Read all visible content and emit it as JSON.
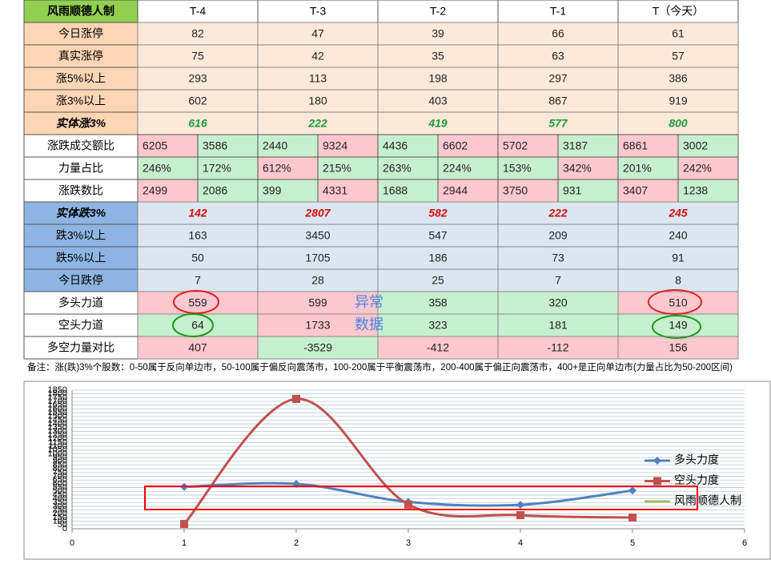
{
  "table": {
    "header": [
      "风雨顺德人制",
      "T-4",
      "T-3",
      "T-2",
      "T-1",
      "T（今天）"
    ],
    "rows": [
      {
        "label": "今日涨停",
        "cells": [
          82,
          47,
          39,
          66,
          61
        ]
      },
      {
        "label": "真实涨停",
        "cells": [
          75,
          42,
          35,
          63,
          57
        ]
      },
      {
        "label": "涨5%以上",
        "cells": [
          293,
          113,
          198,
          297,
          386
        ]
      },
      {
        "label": "涨3%以上",
        "cells": [
          602,
          180,
          403,
          867,
          919
        ]
      },
      {
        "label": "实体涨3%",
        "cells": [
          616,
          222,
          419,
          577,
          800
        ]
      },
      {
        "label": "涨跌成交额比",
        "cells": [
          6205,
          3586,
          2440,
          9324,
          4436,
          6602,
          5702,
          3187,
          6861,
          3002
        ]
      },
      {
        "label": "力量占比",
        "cells": [
          "246%",
          "172%",
          "612%",
          "215%",
          "263%",
          "224%",
          "153%",
          "342%",
          "201%",
          "242%"
        ]
      },
      {
        "label": "涨跌数比",
        "cells": [
          2499,
          2086,
          399,
          4331,
          1688,
          2944,
          3750,
          931,
          3407,
          1238
        ]
      },
      {
        "label": "实体跌3%",
        "cells": [
          142,
          2807,
          582,
          222,
          245
        ]
      },
      {
        "label": "跌3%以上",
        "cells": [
          163,
          3450,
          547,
          209,
          240
        ]
      },
      {
        "label": "跌5%以上",
        "cells": [
          50,
          1705,
          186,
          73,
          91
        ]
      },
      {
        "label": "今日跌停",
        "cells": [
          7,
          28,
          25,
          7,
          8
        ]
      },
      {
        "label": "多头力道",
        "cells": [
          559,
          599,
          358,
          320,
          510
        ]
      },
      {
        "label": "空头力道",
        "cells": [
          64,
          1733,
          323,
          181,
          149
        ]
      },
      {
        "label": "多空力量对比",
        "cells": [
          407,
          -3529,
          -412,
          -112,
          156
        ]
      }
    ]
  },
  "annotations": [
    "异常",
    "数据"
  ],
  "note": "备注：涨(跌)3%个股数：0-50属于反向单边市，50-100属于偏反向震荡市，100-200属于平衡震荡市，200-400属于偏正向震荡市，400+是正向单边市(力量占比为50-200区间)",
  "chart_data": {
    "type": "line",
    "x": [
      1,
      2,
      3,
      4,
      5
    ],
    "series": [
      {
        "name": "多头力度",
        "color": "#4f81bd",
        "values": [
          559,
          599,
          358,
          320,
          510
        ]
      },
      {
        "name": "空头力度",
        "color": "#c0504d",
        "values": [
          64,
          1733,
          323,
          181,
          149
        ]
      },
      {
        "name": "风雨顺德人制",
        "color": "#9bbb59"
      }
    ],
    "xlim": [
      0,
      6
    ],
    "xticks": [
      0,
      1,
      2,
      3,
      4,
      5,
      6
    ],
    "ylim": [
      0,
      1850
    ],
    "yticks": [
      0,
      50,
      100,
      150,
      200,
      250,
      300,
      350,
      400,
      450,
      500,
      550,
      600,
      650,
      700,
      750,
      800,
      850,
      900,
      950,
      1000,
      1050,
      1100,
      1150,
      1200,
      1250,
      1300,
      1350,
      1400,
      1450,
      1500,
      1550,
      1600,
      1650,
      1700,
      1750,
      1800,
      1850
    ],
    "grid": true,
    "legend": "right"
  }
}
